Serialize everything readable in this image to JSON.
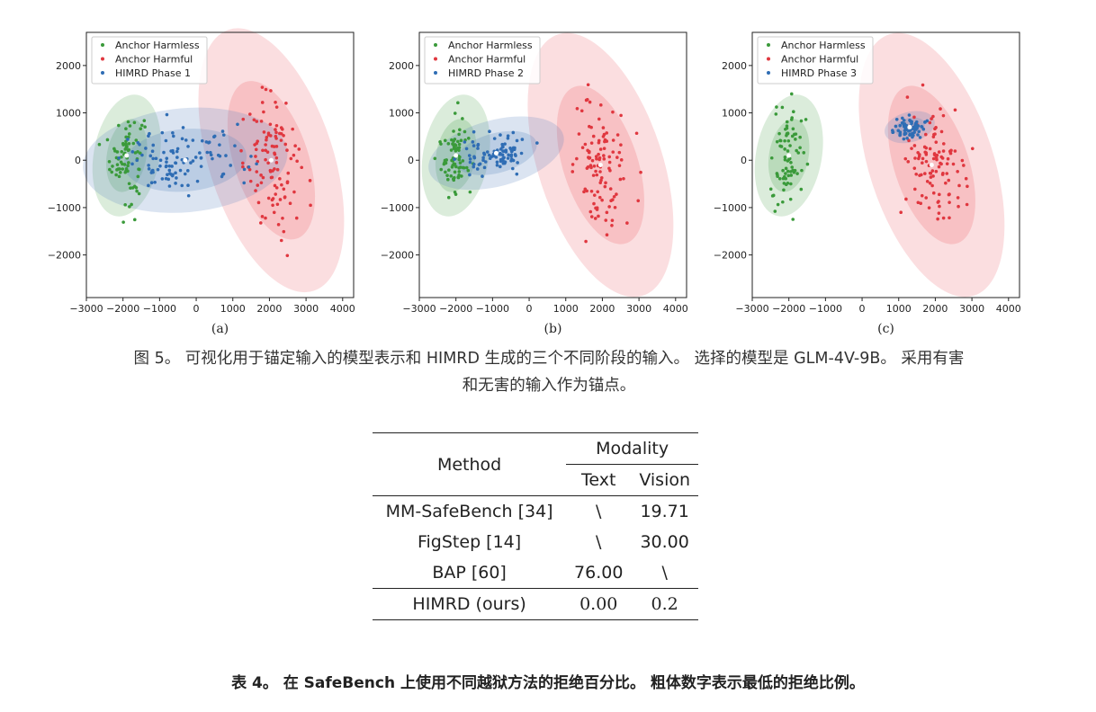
{
  "legend": {
    "harmless": "Anchor Harmless",
    "harmful": "Anchor Harmful"
  },
  "colors": {
    "harmless": "#3a9a3a",
    "harmful": "#e0373f",
    "phase": "#2f6db4",
    "harmless_fill": "#59a85a",
    "harmful_fill": "#ee6a70",
    "phase_fill": "#5a86c0"
  },
  "x_ticks": [
    "−3000",
    "−2000",
    "−1000",
    "0",
    "1000",
    "2000",
    "3000",
    "4000"
  ],
  "y_ticks": [
    "2000",
    "1000",
    "0",
    "−1000",
    "−2000"
  ],
  "chart_data": [
    {
      "type": "scatter",
      "sublabel": "(a)",
      "phase_label": "HIMRD Phase 1",
      "xlim": [
        -3000,
        4300
      ],
      "ylim": [
        -2900,
        2700
      ],
      "clusters": {
        "harmless": {
          "center": [
            -1900,
            100
          ],
          "spread": [
            220,
            500
          ],
          "n": 80,
          "ellipse_rx": 900,
          "ellipse_ry": 1300,
          "angle": -10
        },
        "harmful": {
          "center": [
            2050,
            0
          ],
          "spread": [
            400,
            700
          ],
          "n": 110,
          "ellipse_rx": 1700,
          "ellipse_ry": 2900,
          "angle": 18
        },
        "phase": {
          "center": [
            -300,
            0
          ],
          "spread": [
            850,
            330
          ],
          "n": 110,
          "ellipse_rx": 2800,
          "ellipse_ry": 1100,
          "angle": 5
        }
      }
    },
    {
      "type": "scatter",
      "sublabel": "(b)",
      "phase_label": "HIMRD Phase 2",
      "xlim": [
        -3000,
        4300
      ],
      "ylim": [
        -2900,
        2700
      ],
      "clusters": {
        "harmless": {
          "center": [
            -2000,
            100
          ],
          "spread": [
            220,
            500
          ],
          "n": 80,
          "ellipse_rx": 900,
          "ellipse_ry": 1300,
          "angle": -10
        },
        "harmful": {
          "center": [
            1950,
            -100
          ],
          "spread": [
            420,
            700
          ],
          "n": 110,
          "ellipse_rx": 1700,
          "ellipse_ry": 2900,
          "angle": 18
        },
        "phase": {
          "center": [
            -900,
            150
          ],
          "spread": [
            500,
            200
          ],
          "n": 90,
          "ellipse_rx": 1900,
          "ellipse_ry": 700,
          "angle": 15
        }
      }
    },
    {
      "type": "scatter",
      "sublabel": "(c)",
      "phase_label": "HIMRD Phase 3",
      "xlim": [
        -3000,
        4300
      ],
      "ylim": [
        -2900,
        2700
      ],
      "clusters": {
        "harmless": {
          "center": [
            -2000,
            100
          ],
          "spread": [
            220,
            500
          ],
          "n": 80,
          "ellipse_rx": 900,
          "ellipse_ry": 1300,
          "angle": -10
        },
        "harmful": {
          "center": [
            1900,
            -100
          ],
          "spread": [
            420,
            700
          ],
          "n": 110,
          "ellipse_rx": 1700,
          "ellipse_ry": 2900,
          "angle": 18
        },
        "phase": {
          "center": [
            1300,
            700
          ],
          "spread": [
            220,
            110
          ],
          "n": 70,
          "ellipse_rx": 700,
          "ellipse_ry": 320,
          "angle": 15
        }
      }
    }
  ],
  "figure_caption_line1": "图 5。 可视化用于锚定输入的模型表示和 HIMRD 生成的三个不同阶段的输入。 选择的模型是 GLM-4V-9B。 采用有害",
  "figure_caption_line2": "和无害的输入作为锚点。",
  "table": {
    "header_method": "Method",
    "header_modality": "Modality",
    "header_text": "Text",
    "header_vision": "Vision",
    "rows": [
      {
        "method": "MM-SafeBench [34]",
        "text": "\\",
        "vision": "19.71"
      },
      {
        "method": "FigStep [14]",
        "text": "\\",
        "vision": "30.00"
      },
      {
        "method": "BAP [60]",
        "text": "76.00",
        "vision": "\\"
      }
    ],
    "ours": {
      "method": "HIMRD (ours)",
      "text": "0.00",
      "vision": "0.2"
    }
  },
  "table_caption": "表 4。 在 SafeBench 上使用不同越狱方法的拒绝百分比。 粗体数字表示最低的拒绝比例。"
}
